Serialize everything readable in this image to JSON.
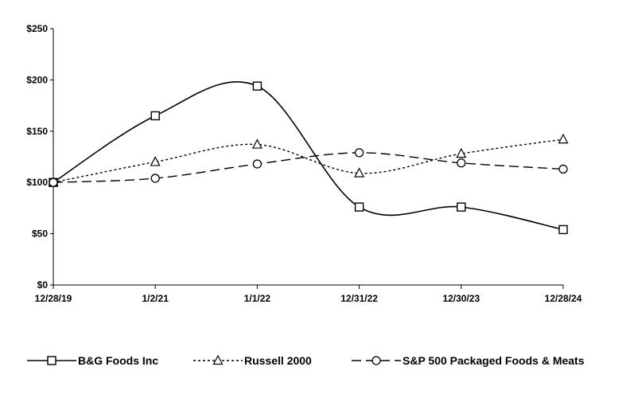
{
  "chart_data": {
    "type": "line",
    "title": "",
    "xlabel": "",
    "ylabel": "",
    "categories": [
      "12/28/19",
      "1/2/21",
      "1/1/22",
      "12/31/22",
      "12/30/23",
      "12/28/24"
    ],
    "y_ticks": [
      "$0",
      "$50",
      "$100",
      "$150",
      "$200",
      "$250"
    ],
    "ylim": [
      0,
      250
    ],
    "grid": false,
    "legend_position": "bottom",
    "series": [
      {
        "name": "B&G Foods Inc",
        "values": [
          100,
          165,
          194,
          76,
          76,
          54
        ],
        "marker": "square",
        "dash": "solid",
        "color": "#000000"
      },
      {
        "name": "Russell 2000",
        "values": [
          100,
          120,
          137,
          109,
          128,
          142
        ],
        "marker": "triangle",
        "dash": "dotted",
        "color": "#000000"
      },
      {
        "name": "S&P 500 Packaged Foods & Meats",
        "values": [
          100,
          104,
          118,
          129,
          119,
          113
        ],
        "marker": "circle",
        "dash": "dashed",
        "color": "#000000"
      }
    ]
  }
}
